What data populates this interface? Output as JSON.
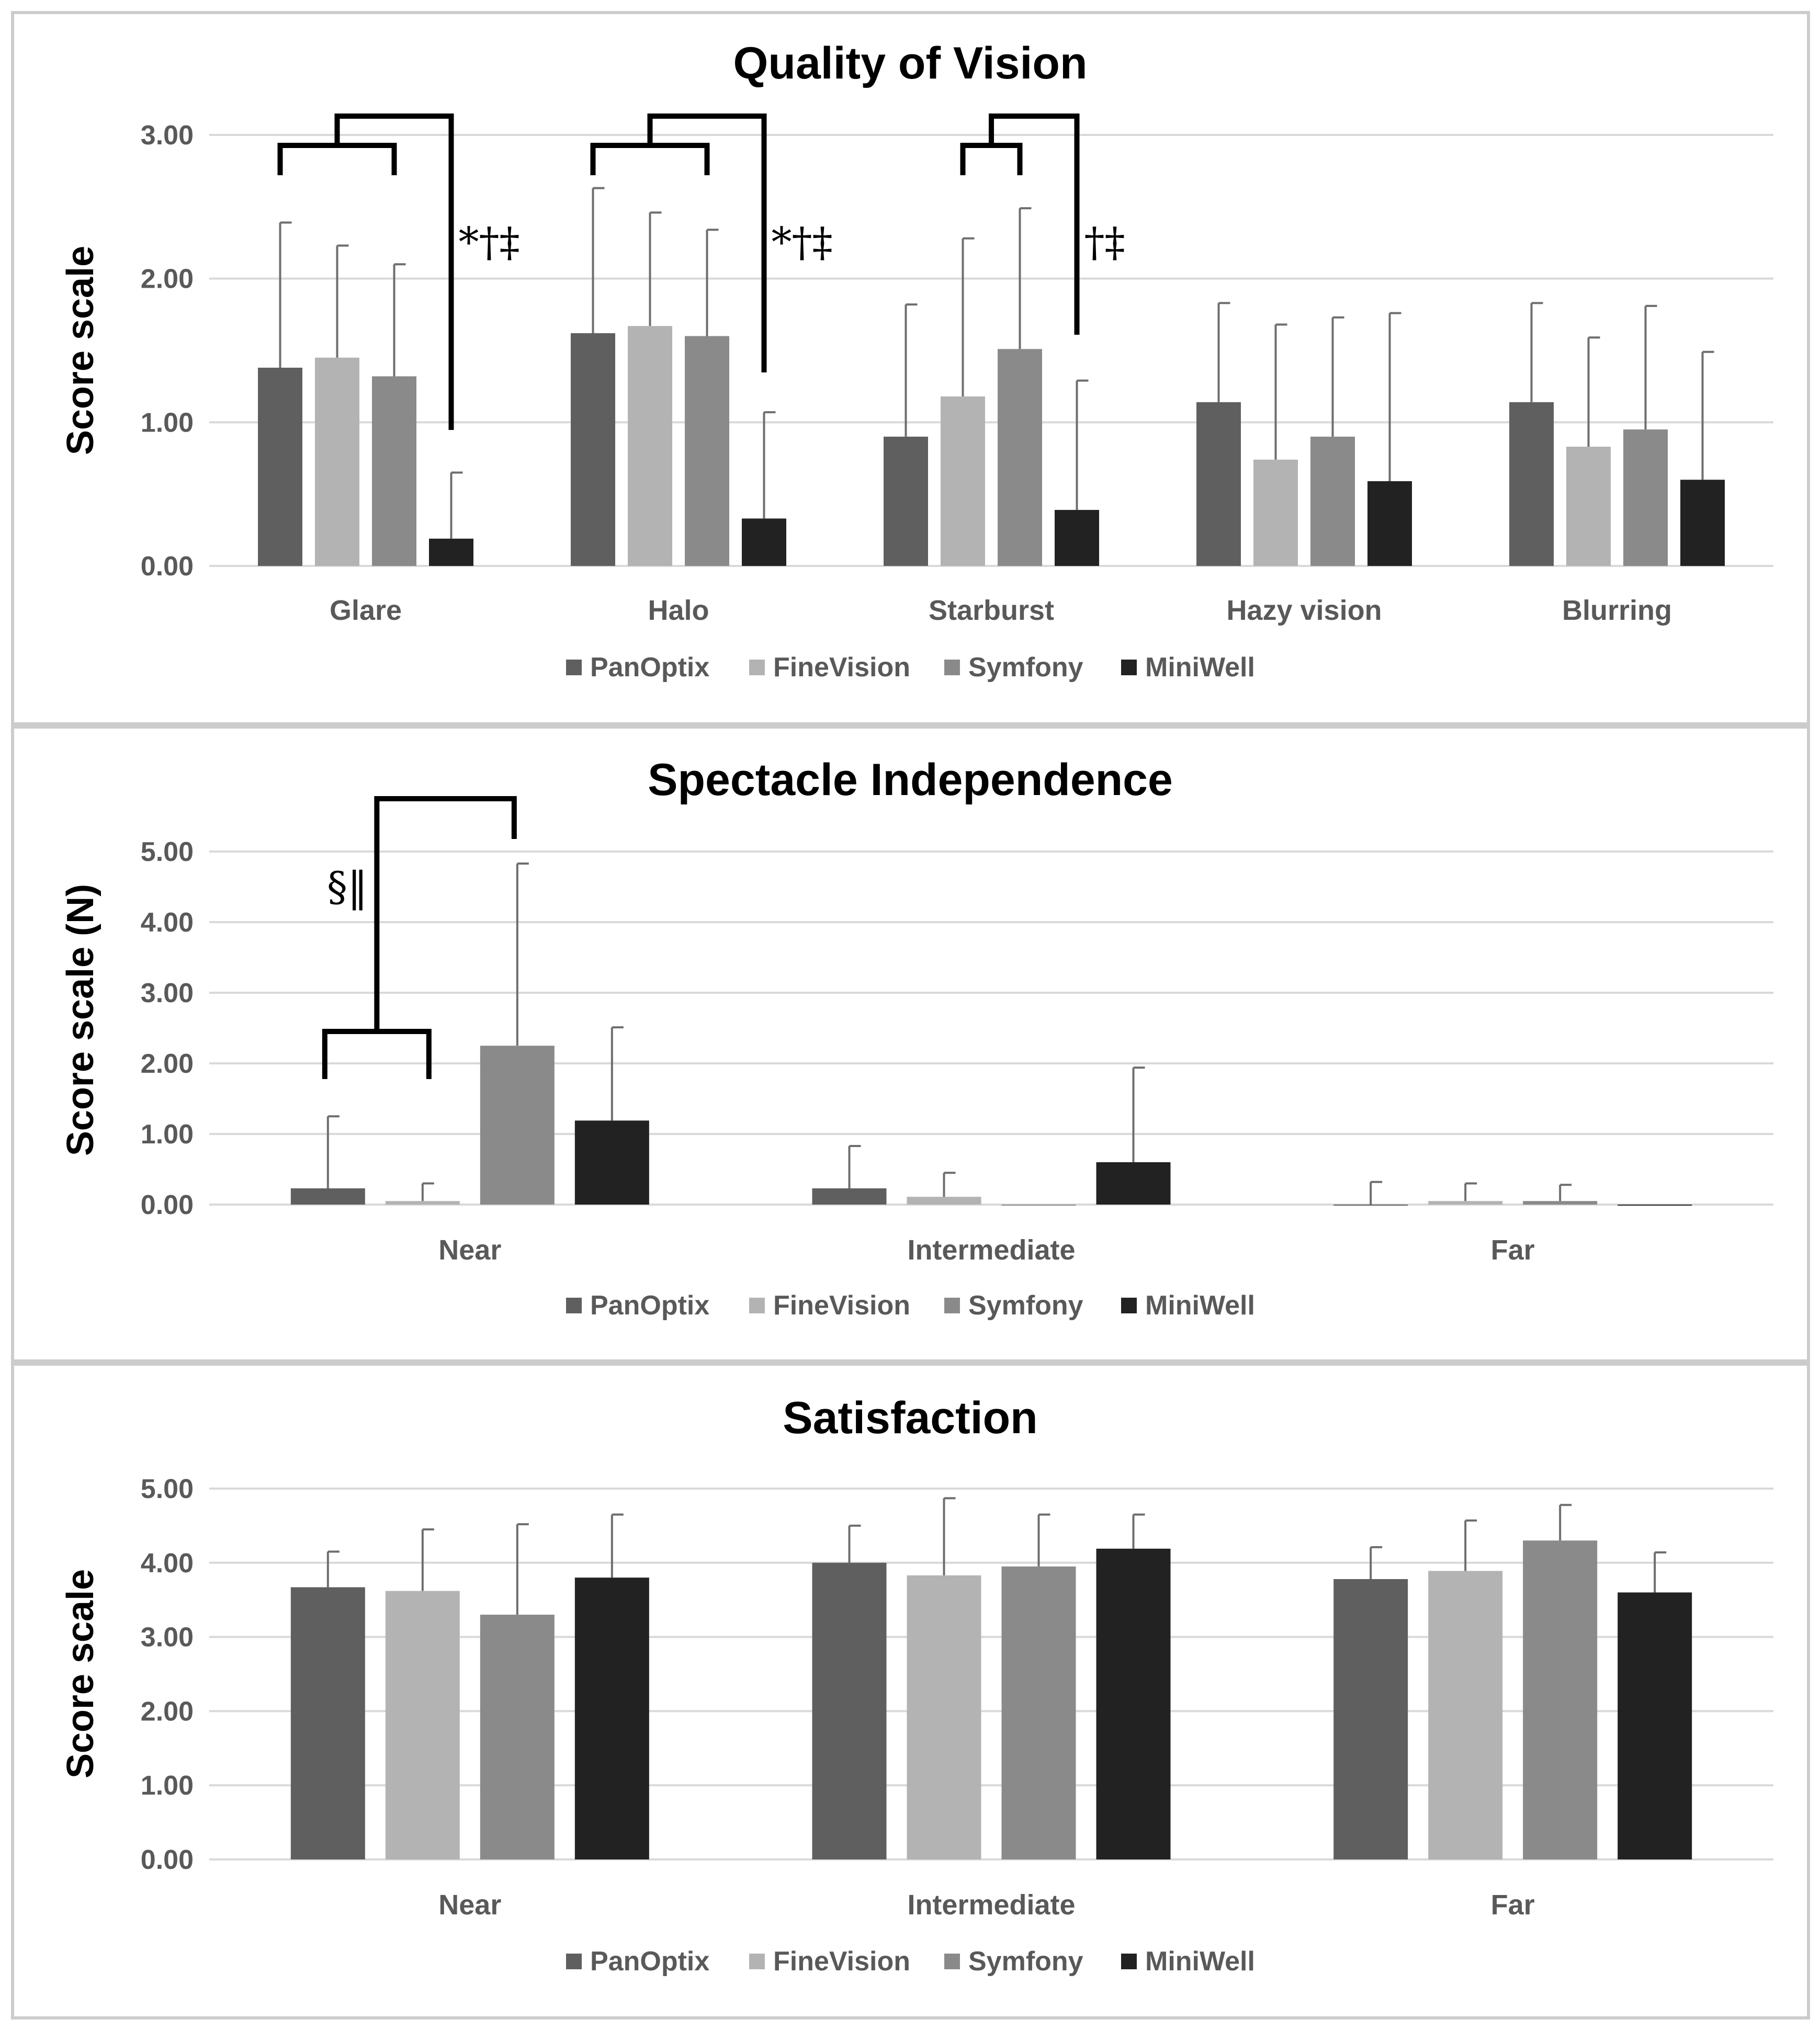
{
  "colors": {
    "PanOptix": "#5f5f5f",
    "FineVision": "#b3b3b3",
    "Symfony": "#8a8a8a",
    "MiniWell": "#222222",
    "grid": "#d9d9d9",
    "border": "#cccccc",
    "bracket": "#000000",
    "error_bar": "#6e6e6e"
  },
  "chart_data": [
    {
      "type": "bar",
      "title": "Quality of Vision",
      "ylabel": "Score scale",
      "xlabel": "",
      "ylim": [
        0,
        3
      ],
      "yticks": [
        "0.00",
        "1.00",
        "2.00",
        "3.00"
      ],
      "categories": [
        "Glare",
        "Halo",
        "Starburst",
        "Hazy vision",
        "Blurring"
      ],
      "series": [
        {
          "name": "PanOptix",
          "values": [
            1.38,
            1.62,
            0.9,
            1.14,
            1.14
          ],
          "errors": [
            1.01,
            1.01,
            0.92,
            0.69,
            0.69
          ]
        },
        {
          "name": "FineVision",
          "values": [
            1.45,
            1.67,
            1.18,
            0.74,
            0.83
          ],
          "errors": [
            0.78,
            0.79,
            1.1,
            0.94,
            0.76
          ]
        },
        {
          "name": "Symfony",
          "values": [
            1.32,
            1.6,
            1.51,
            0.9,
            0.95
          ],
          "errors": [
            0.78,
            0.74,
            0.98,
            0.83,
            0.86
          ]
        },
        {
          "name": "MiniWell",
          "values": [
            0.19,
            0.33,
            0.39,
            0.59,
            0.6
          ],
          "errors": [
            0.46,
            0.74,
            0.9,
            1.17,
            0.89
          ]
        }
      ],
      "annotations": [
        {
          "category": "Glare",
          "label": "*†‡"
        },
        {
          "category": "Halo",
          "label": "*†‡"
        },
        {
          "category": "Starburst",
          "label": "†‡"
        }
      ],
      "legend": "bottom",
      "grid": true
    },
    {
      "type": "bar",
      "title": "Spectacle Independence",
      "ylabel": "Score scale (N)",
      "xlabel": "",
      "ylim": [
        0,
        5
      ],
      "yticks": [
        "0.00",
        "1.00",
        "2.00",
        "3.00",
        "4.00",
        "5.00"
      ],
      "categories": [
        "Near",
        "Intermediate",
        "Far"
      ],
      "series": [
        {
          "name": "PanOptix",
          "values": [
            0.23,
            0.23,
            0.0
          ],
          "errors": [
            1.02,
            0.6,
            0.32
          ]
        },
        {
          "name": "FineVision",
          "values": [
            0.05,
            0.11,
            0.05
          ],
          "errors": [
            0.25,
            0.34,
            0.25
          ]
        },
        {
          "name": "Symfony",
          "values": [
            2.25,
            0.0,
            0.05
          ],
          "errors": [
            2.58,
            0.0,
            0.23
          ]
        },
        {
          "name": "MiniWell",
          "values": [
            1.19,
            0.6,
            0.0
          ],
          "errors": [
            1.32,
            1.34,
            0.0
          ]
        }
      ],
      "annotations": [
        {
          "category": "Near",
          "label": "§‖"
        }
      ],
      "legend": "bottom",
      "grid": true
    },
    {
      "type": "bar",
      "title": "Satisfaction",
      "ylabel": "Score scale",
      "xlabel": "",
      "ylim": [
        0,
        5
      ],
      "yticks": [
        "0.00",
        "1.00",
        "2.00",
        "3.00",
        "4.00",
        "5.00"
      ],
      "categories": [
        "Near",
        "Intermediate",
        "Far"
      ],
      "series": [
        {
          "name": "PanOptix",
          "values": [
            3.67,
            4.0,
            3.78
          ],
          "errors": [
            0.48,
            0.5,
            0.43
          ]
        },
        {
          "name": "FineVision",
          "values": [
            3.62,
            3.83,
            3.89
          ],
          "errors": [
            0.83,
            1.04,
            0.68
          ]
        },
        {
          "name": "Symfony",
          "values": [
            3.3,
            3.95,
            4.3
          ],
          "errors": [
            1.22,
            0.7,
            0.48
          ]
        },
        {
          "name": "MiniWell",
          "values": [
            3.8,
            4.19,
            3.6
          ],
          "errors": [
            0.85,
            0.46,
            0.54
          ]
        }
      ],
      "annotations": [],
      "legend": "bottom",
      "grid": true
    }
  ]
}
